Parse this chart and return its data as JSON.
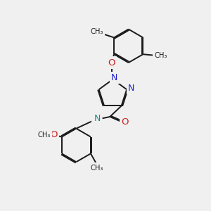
{
  "background_color": "#f0f0f0",
  "bond_color": "#1a1a1a",
  "nitrogen_color": "#2222cc",
  "oxygen_color": "#cc2222",
  "nh_color": "#228888",
  "lw": 1.4,
  "dbo": 0.045,
  "figsize": [
    3.0,
    3.0
  ],
  "dpi": 100,
  "xlim": [
    0,
    10
  ],
  "ylim": [
    0,
    10
  ]
}
